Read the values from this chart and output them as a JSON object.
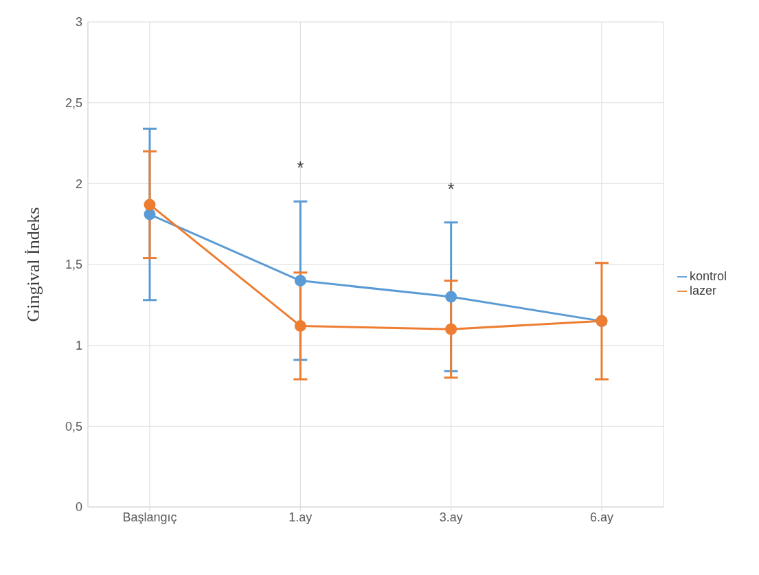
{
  "chart_data": {
    "type": "line",
    "ylabel": "Gingival İndeks",
    "categories": [
      "Başlangıç",
      "1.ay",
      "3.ay",
      "6.ay"
    ],
    "series": [
      {
        "name": "kontrol",
        "color": "#5b9bd5",
        "values": [
          1.81,
          1.4,
          1.3,
          1.15
        ],
        "errors": [
          [
            1.28,
            2.34
          ],
          [
            0.91,
            1.89
          ],
          [
            0.84,
            1.76
          ],
          null
        ]
      },
      {
        "name": "lazer",
        "color": "#ed7d31",
        "values": [
          1.87,
          1.12,
          1.1,
          1.15
        ],
        "errors": [
          [
            1.54,
            2.2
          ],
          [
            0.79,
            1.45
          ],
          [
            0.8,
            1.4
          ],
          [
            0.79,
            1.51
          ]
        ]
      }
    ],
    "ylim": [
      0,
      3
    ],
    "yticks": [
      0,
      {
        "value": 0.5,
        "label": "0,5"
      },
      1,
      {
        "value": 1.5,
        "label": "1,5"
      },
      2,
      {
        "value": 2.5,
        "label": "2,5"
      },
      3
    ],
    "annotations": [
      "*",
      "*"
    ],
    "grid": true,
    "legend": "right",
    "marker": "circle",
    "line_style": "solid"
  }
}
